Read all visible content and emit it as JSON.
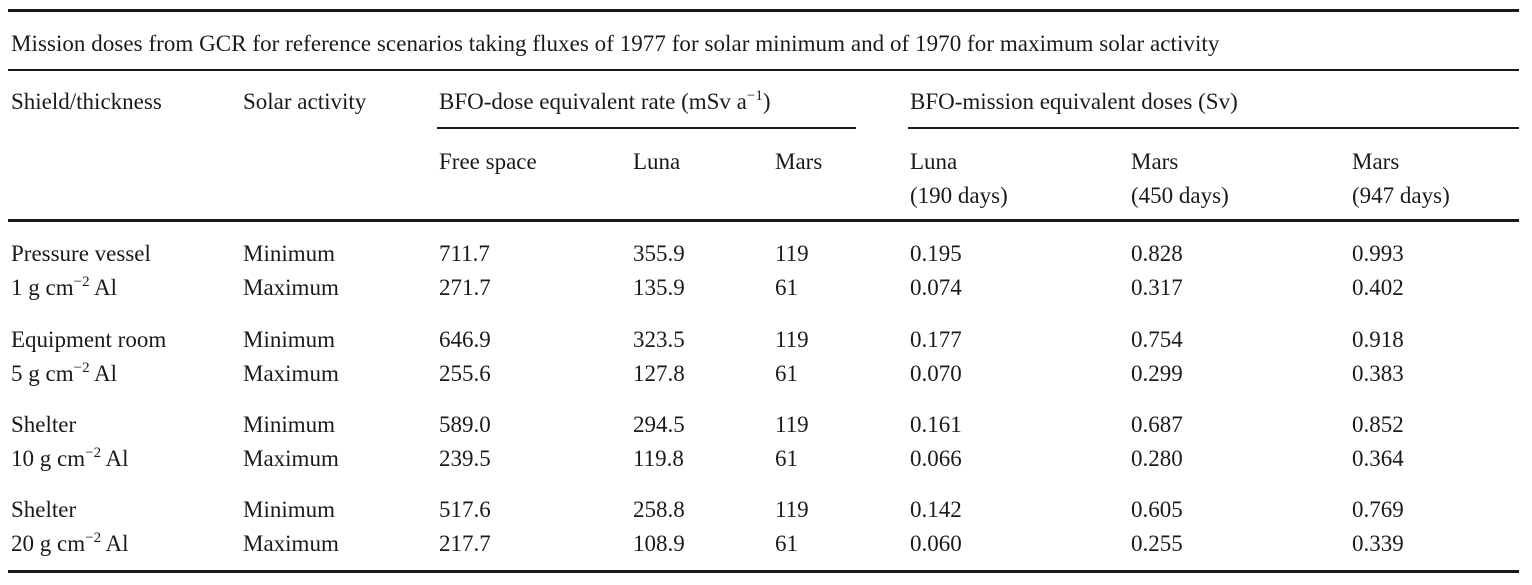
{
  "caption": "Mission doses from GCR for reference scenarios taking fluxes of 1977 for solar minimum and of 1970 for maximum solar activity",
  "headers": {
    "shield": "Shield/thickness",
    "solar_activity": "Solar activity",
    "rate_group": "BFO-dose equivalent rate (mSv a",
    "rate_group_sup": "−1",
    "rate_group_close": ")",
    "dose_group": "BFO-mission equivalent doses (Sv)",
    "sub": {
      "free_space": "Free space",
      "luna": "Luna",
      "mars": "Mars",
      "luna_days_1": "Luna",
      "luna_days_2": "(190 days)",
      "mars450_1": "Mars",
      "mars450_2": "(450 days)",
      "mars947_1": "Mars",
      "mars947_2": "(947 days)"
    }
  },
  "rows": [
    {
      "shield": "Pressure vessel",
      "thick_pre": "1 g cm",
      "thick_sup": "−2",
      "thick_post": " Al",
      "min": {
        "activity": "Minimum",
        "free": "711.7",
        "luna": "355.9",
        "mars": "119",
        "d190": "0.195",
        "d450": "0.828",
        "d947": "0.993"
      },
      "max": {
        "activity": "Maximum",
        "free": "271.7",
        "luna": "135.9",
        "mars": "61",
        "d190": "0.074",
        "d450": "0.317",
        "d947": "0.402"
      }
    },
    {
      "shield": "Equipment room",
      "thick_pre": "5 g cm",
      "thick_sup": "−2",
      "thick_post": " Al",
      "min": {
        "activity": "Minimum",
        "free": "646.9",
        "luna": "323.5",
        "mars": "119",
        "d190": "0.177",
        "d450": "0.754",
        "d947": "0.918"
      },
      "max": {
        "activity": "Maximum",
        "free": "255.6",
        "luna": "127.8",
        "mars": "61",
        "d190": "0.070",
        "d450": "0.299",
        "d947": "0.383"
      }
    },
    {
      "shield": "Shelter",
      "thick_pre": "10 g cm",
      "thick_sup": "−2",
      "thick_post": " Al",
      "min": {
        "activity": "Minimum",
        "free": "589.0",
        "luna": "294.5",
        "mars": "119",
        "d190": "0.161",
        "d450": "0.687",
        "d947": "0.852"
      },
      "max": {
        "activity": "Maximum",
        "free": "239.5",
        "luna": "119.8",
        "mars": "61",
        "d190": "0.066",
        "d450": "0.280",
        "d947": "0.364"
      }
    },
    {
      "shield": "Shelter",
      "thick_pre": "20 g cm",
      "thick_sup": "−2",
      "thick_post": " Al",
      "min": {
        "activity": "Minimum",
        "free": "517.6",
        "luna": "258.8",
        "mars": "119",
        "d190": "0.142",
        "d450": "0.605",
        "d947": "0.769"
      },
      "max": {
        "activity": "Maximum",
        "free": "217.7",
        "luna": "108.9",
        "mars": "61",
        "d190": "0.060",
        "d450": "0.255",
        "d947": "0.339"
      }
    }
  ]
}
